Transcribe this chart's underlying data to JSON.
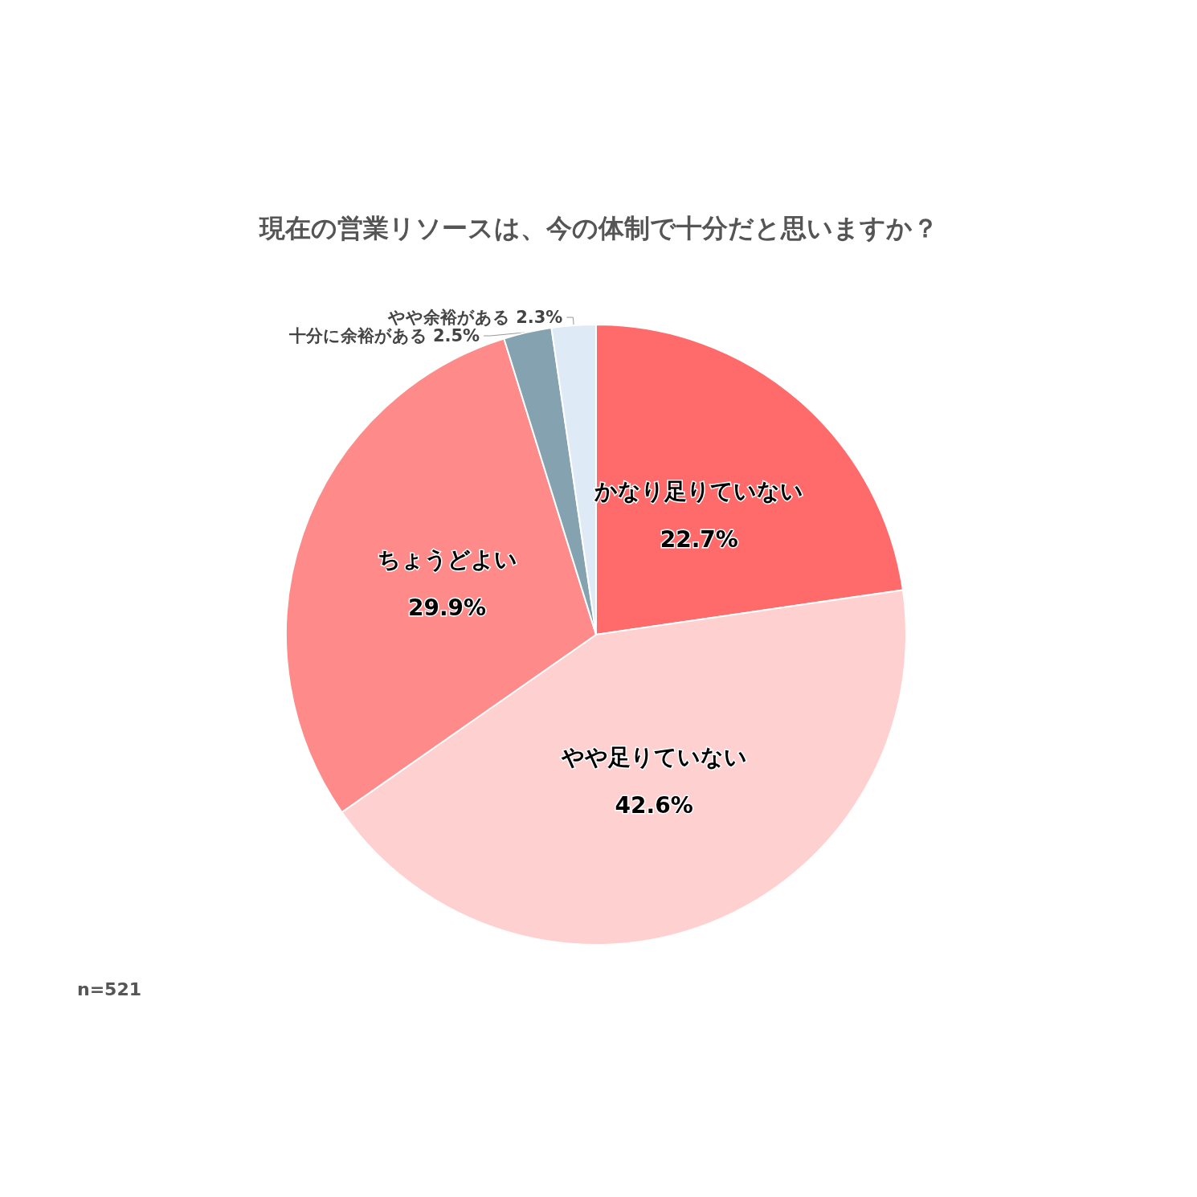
{
  "chart_data": {
    "type": "pie",
    "title": "現在の営業リソースは、今の体制で十分だと思いますか？",
    "categories": [
      "かなり足りていない",
      "やや足りていない",
      "ちょうどよい",
      "十分に余裕がある",
      "やや余裕がある"
    ],
    "values": [
      22.7,
      42.6,
      29.9,
      2.5,
      2.3
    ],
    "value_labels": [
      "22.7%",
      "42.6%",
      "29.9%",
      "2.5%",
      "2.3%"
    ],
    "colors": [
      "#ff6b6b",
      "#ffd0d0",
      "#ff8a8a",
      "#84a2b0",
      "#deeaf5"
    ],
    "annotations": [
      "n=521"
    ],
    "legend": false
  }
}
